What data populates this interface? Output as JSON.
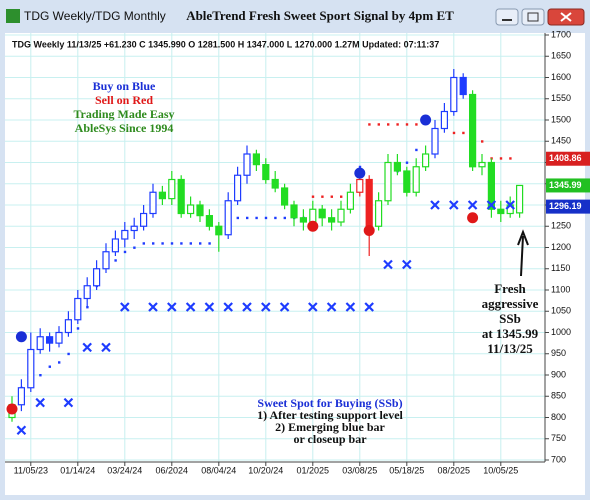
{
  "window": {
    "title": "TDG Weekly/TDG Monthly"
  },
  "chart_data": {
    "type": "candlestick",
    "title": "AbleTrend Fresh Sweet Sport Signal by 4pm ET",
    "info_line": "TDG  Weekly 11/13/25 +61.230 C 1345.990 O 1281.500 H 1347.000 L 1270.000 1.27M Updated: 07:11:37",
    "legend_notes": [
      {
        "text": "Buy on Blue",
        "color": "#1a2fd6"
      },
      {
        "text": "Sell on Red",
        "color": "#e01818"
      },
      {
        "text": "Trading Made Easy",
        "color": "#2e8b1e"
      },
      {
        "text": "AbleSys Since 1994",
        "color": "#2e8b1e"
      }
    ],
    "callout": [
      "Fresh",
      "aggressive",
      "SSb",
      "at 1345.99",
      "11/13/25"
    ],
    "sweet_spot_notes": [
      "Sweet Spot for Buying (SSb)",
      "1) After testing support level",
      "2) Emerging blue bar",
      "or closeup bar"
    ],
    "categories": [
      null,
      null,
      "11/05/23",
      null,
      null,
      null,
      null,
      "01/14/24",
      null,
      null,
      null,
      null,
      "03/24/24",
      null,
      null,
      null,
      null,
      "06/2024",
      null,
      null,
      null,
      null,
      "08/04/24",
      null,
      null,
      null,
      null,
      "10/20/24",
      null,
      null,
      null,
      null,
      "01/2025",
      null,
      null,
      null,
      null,
      "03/08/25",
      null,
      null,
      null,
      null,
      "05/18/25",
      null,
      null,
      null,
      null,
      "08/2025",
      null,
      null,
      null,
      null,
      "10/05/25",
      null,
      null
    ],
    "open": [
      800,
      830,
      870,
      960,
      990,
      975,
      1000,
      1030,
      1080,
      1110,
      1150,
      1190,
      1220,
      1240,
      1250,
      1280,
      1330,
      1315,
      1360,
      1280,
      1300,
      1275,
      1250,
      1230,
      1310,
      1370,
      1420,
      1395,
      1360,
      1340,
      1300,
      1270,
      1260,
      1290,
      1270,
      1260,
      1290,
      1330,
      1360,
      1250,
      1310,
      1400,
      1380,
      1330,
      1390,
      1420,
      1480,
      1520,
      1600,
      1560,
      1390,
      1400,
      1290,
      1280,
      1281.5
    ],
    "high": [
      850,
      890,
      1000,
      1010,
      1000,
      1015,
      1050,
      1100,
      1130,
      1170,
      1210,
      1240,
      1260,
      1270,
      1300,
      1350,
      1345,
      1380,
      1370,
      1320,
      1310,
      1290,
      1260,
      1330,
      1390,
      1440,
      1430,
      1410,
      1380,
      1350,
      1310,
      1290,
      1310,
      1300,
      1290,
      1310,
      1350,
      1380,
      1370,
      1330,
      1420,
      1420,
      1390,
      1410,
      1440,
      1500,
      1540,
      1620,
      1610,
      1570,
      1420,
      1410,
      1310,
      1320,
      1347
    ],
    "low": [
      790,
      815,
      860,
      950,
      955,
      965,
      990,
      1020,
      1060,
      1100,
      1140,
      1180,
      1200,
      1220,
      1240,
      1270,
      1300,
      1300,
      1270,
      1270,
      1260,
      1240,
      1190,
      1220,
      1300,
      1350,
      1380,
      1350,
      1330,
      1290,
      1250,
      1240,
      1250,
      1250,
      1240,
      1250,
      1280,
      1320,
      1180,
      1240,
      1300,
      1370,
      1320,
      1320,
      1380,
      1410,
      1470,
      1510,
      1550,
      1380,
      1370,
      1270,
      1260,
      1270,
      1270
    ],
    "close": [
      830,
      870,
      960,
      990,
      975,
      1000,
      1030,
      1080,
      1110,
      1150,
      1190,
      1220,
      1240,
      1250,
      1280,
      1330,
      1315,
      1360,
      1280,
      1300,
      1275,
      1250,
      1230,
      1310,
      1370,
      1420,
      1395,
      1360,
      1340,
      1300,
      1270,
      1260,
      1290,
      1270,
      1260,
      1290,
      1330,
      1360,
      1250,
      1310,
      1400,
      1380,
      1330,
      1390,
      1420,
      1480,
      1520,
      1600,
      1560,
      1390,
      1400,
      1290,
      1280,
      1300,
      1345.99
    ],
    "bar_colors": [
      "#22dd22",
      "#1e3cff",
      "#1e3cff",
      "#1e3cff",
      "#1e3cff",
      "#1e3cff",
      "#1e3cff",
      "#1e3cff",
      "#1e3cff",
      "#1e3cff",
      "#1e3cff",
      "#1e3cff",
      "#1e3cff",
      "#1e3cff",
      "#1e3cff",
      "#1e3cff",
      "#22dd22",
      "#22dd22",
      "#22dd22",
      "#22dd22",
      "#22dd22",
      "#22dd22",
      "#22dd22",
      "#1e3cff",
      "#1e3cff",
      "#1e3cff",
      "#22dd22",
      "#22dd22",
      "#22dd22",
      "#22dd22",
      "#22dd22",
      "#22dd22",
      "#22dd22",
      "#22dd22",
      "#22dd22",
      "#22dd22",
      "#22dd22",
      "#ee2222",
      "#ee2222",
      "#22dd22",
      "#22dd22",
      "#22dd22",
      "#22dd22",
      "#22dd22",
      "#22dd22",
      "#1e3cff",
      "#1e3cff",
      "#1e3cff",
      "#1e3cff",
      "#22dd22",
      "#22dd22",
      "#22dd22",
      "#22dd22",
      "#22dd22",
      "#22dd22"
    ],
    "dot_series": [
      {
        "color": "#1e3cff",
        "values": [
          null,
          870,
          880,
          900,
          920,
          930,
          950,
          1010,
          1060,
          1110,
          1160,
          1170,
          1190,
          1200,
          1210,
          1210,
          1210,
          1210,
          1210,
          1210,
          1210,
          1210,
          1240,
          1270,
          1270,
          1270,
          1270,
          1270,
          1270,
          1270,
          1270,
          1270,
          null,
          null,
          null,
          null,
          null,
          1390,
          null,
          null,
          1380,
          1380,
          1400,
          1430,
          null,
          null,
          null,
          null,
          null,
          null,
          null,
          null,
          null,
          null,
          null
        ]
      },
      {
        "color": "#ee2222",
        "values": [
          null,
          null,
          null,
          null,
          null,
          null,
          null,
          null,
          null,
          null,
          null,
          null,
          null,
          null,
          null,
          null,
          null,
          null,
          null,
          null,
          null,
          null,
          null,
          null,
          null,
          null,
          null,
          null,
          null,
          null,
          null,
          null,
          1320,
          1320,
          1320,
          1320,
          null,
          null,
          1490,
          1490,
          1490,
          1490,
          1490,
          1490,
          null,
          null,
          null,
          1470,
          1470,
          1450,
          1450,
          1410,
          1410,
          1410,
          null
        ]
      }
    ],
    "buy_points": {
      "color": "#1a2fd6",
      "x": [
        1,
        37,
        44
      ],
      "values": [
        990,
        1375,
        1500
      ]
    },
    "sell_points": {
      "color": "#e01818",
      "x": [
        0,
        32,
        38,
        49
      ],
      "values": [
        820,
        1250,
        1240,
        1270
      ]
    },
    "x_marks": {
      "color": "#1e3cff",
      "x": [
        1,
        3,
        6,
        8,
        10,
        12,
        15,
        17,
        19,
        21,
        23,
        25,
        27,
        29,
        32,
        34,
        36,
        38,
        40,
        42,
        45,
        47,
        49,
        51,
        53
      ],
      "values": [
        770,
        835,
        835,
        965,
        965,
        1060,
        1060,
        1060,
        1060,
        1060,
        1060,
        1060,
        1060,
        1060,
        1060,
        1060,
        1060,
        1060,
        1160,
        1160,
        1300,
        1300,
        1300,
        1300,
        1300
      ]
    },
    "price_tags": [
      {
        "value": 1408.86,
        "color": "#d82020"
      },
      {
        "value": 1345.99,
        "color": "#22c022"
      },
      {
        "value": 1296.19,
        "color": "#1630c8"
      }
    ],
    "ylim": [
      700,
      1700
    ],
    "yticks": [
      700,
      750,
      800,
      850,
      900,
      950,
      1000,
      1050,
      1100,
      1150,
      1200,
      1250,
      1300,
      1350,
      1400,
      1450,
      1500,
      1550,
      1600,
      1650,
      1700
    ],
    "grid": true
  }
}
